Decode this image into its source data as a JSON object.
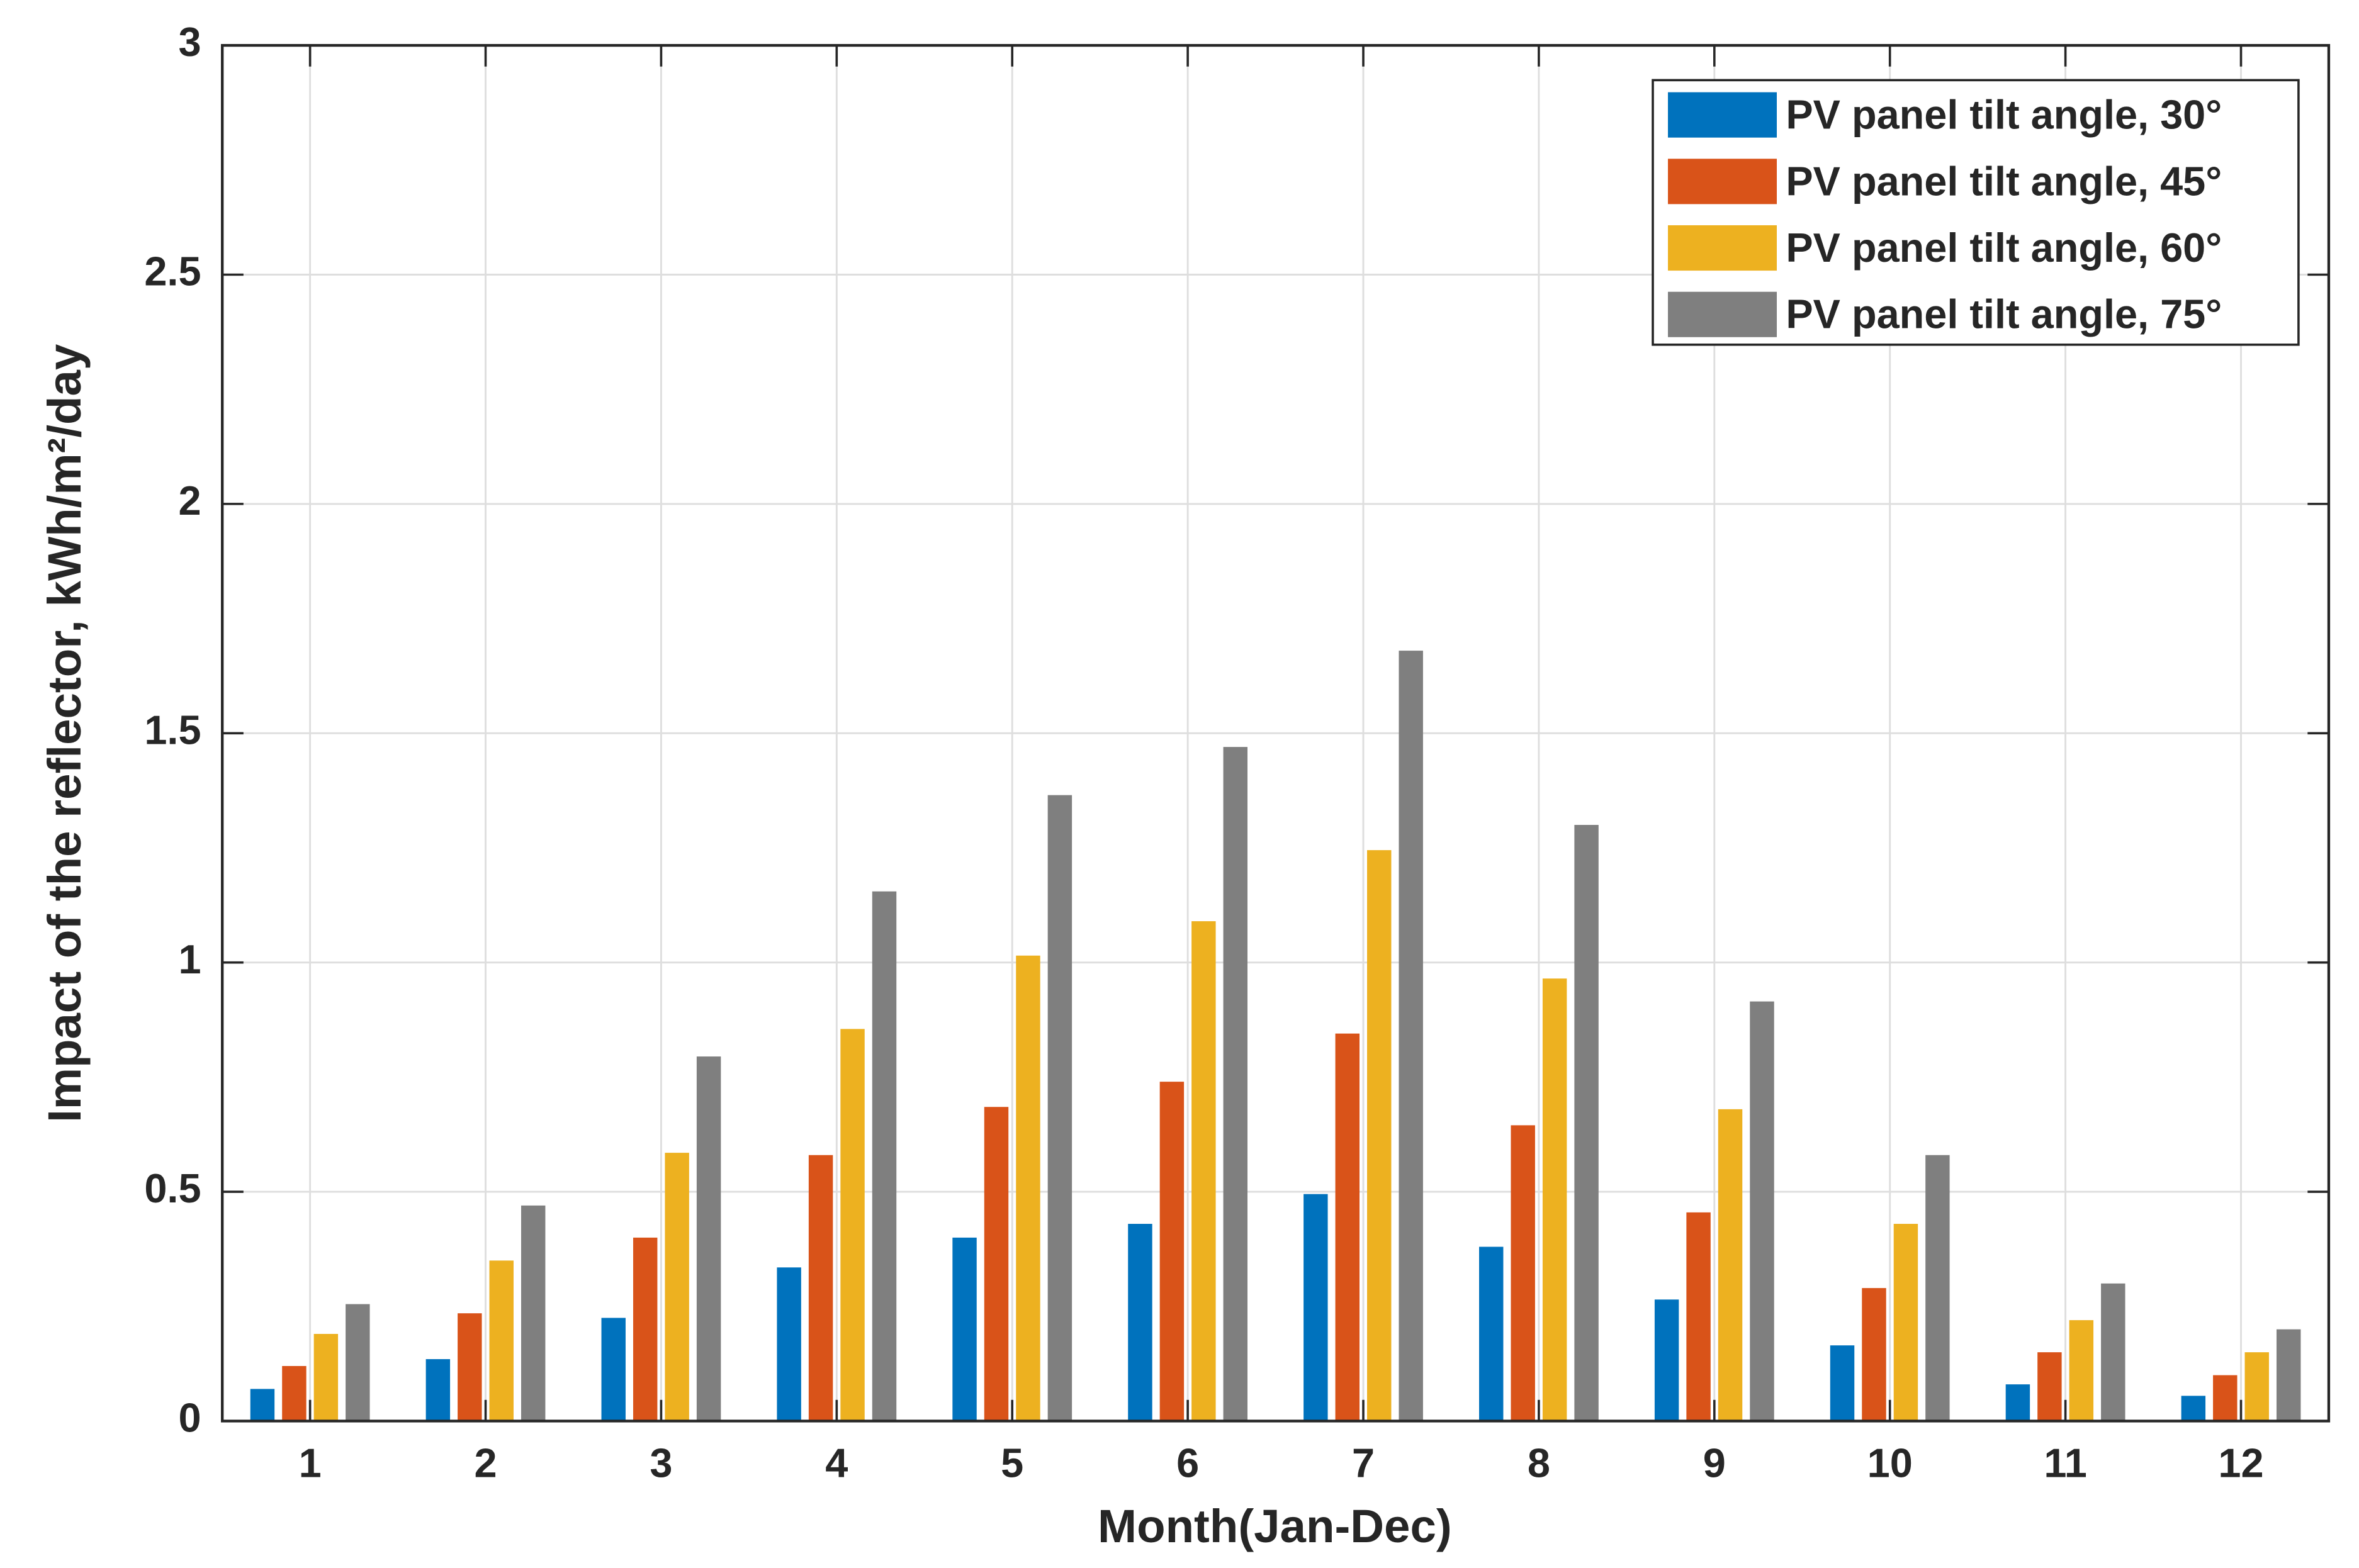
{
  "chart_data": {
    "type": "bar",
    "x_label": "Month(Jan-Dec)",
    "y_label": "Impact of the reflector, kWh/m²/day",
    "categories": [
      1,
      2,
      3,
      4,
      5,
      6,
      7,
      8,
      9,
      10,
      11,
      12
    ],
    "series": [
      {
        "name": "PV panel tilt angle, 30°",
        "color": "#0072bd",
        "values": [
          0.07,
          0.135,
          0.225,
          0.335,
          0.4,
          0.43,
          0.495,
          0.38,
          0.265,
          0.165,
          0.08,
          0.055
        ]
      },
      {
        "name": "PV panel tilt angle, 45°",
        "color": "#d95319",
        "values": [
          0.12,
          0.235,
          0.4,
          0.58,
          0.685,
          0.74,
          0.845,
          0.645,
          0.455,
          0.29,
          0.15,
          0.1
        ]
      },
      {
        "name": "PV panel tilt angle, 60°",
        "color": "#edb120",
        "values": [
          0.19,
          0.35,
          0.585,
          0.855,
          1.015,
          1.09,
          1.245,
          0.965,
          0.68,
          0.43,
          0.22,
          0.15
        ]
      },
      {
        "name": "PV panel tilt angle, 75°",
        "color": "#7f7f7f",
        "values": [
          0.255,
          0.47,
          0.795,
          1.155,
          1.365,
          1.47,
          1.68,
          1.3,
          0.915,
          0.58,
          0.3,
          0.2
        ]
      }
    ],
    "ylim": [
      0,
      3
    ],
    "yticks": [
      0,
      0.5,
      1,
      1.5,
      2,
      2.5,
      3
    ],
    "grid": true,
    "legend": "upper right"
  }
}
